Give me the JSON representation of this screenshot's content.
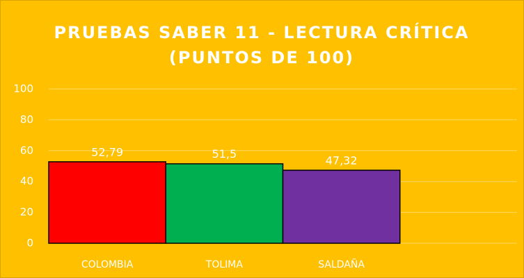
{
  "chart_data": {
    "type": "bar",
    "title": [
      "PRUEBAS SABER 11 - LECTURA CRÍTICA",
      "(PUNTOS DE 100)"
    ],
    "categories": [
      "COLOMBIA",
      "TOLIMA",
      "SALDAÑA",
      null
    ],
    "values": [
      52.79,
      51.5,
      47.32,
      null
    ],
    "value_labels": [
      "52,79",
      "51,5",
      "47,32",
      null
    ],
    "colors": [
      "#ff0000",
      "#00b050",
      "#7030a0",
      null
    ],
    "ylim": [
      0,
      100
    ],
    "yticks": [
      0,
      20,
      40,
      60,
      80,
      100
    ],
    "grid": true
  }
}
